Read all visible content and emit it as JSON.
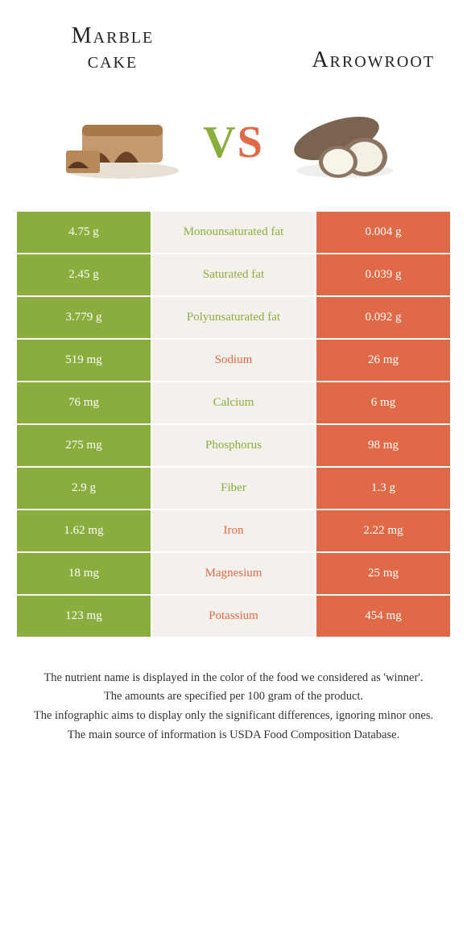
{
  "foods": {
    "left": {
      "title_line1": "Marble",
      "title_line2": "cake"
    },
    "right": {
      "title": "Arrowroot"
    }
  },
  "vs": {
    "v": "V",
    "s": "S"
  },
  "colors": {
    "green": "#8aad3e",
    "orange": "#e06a47",
    "mid_bg": "#f4f1ec"
  },
  "rows": [
    {
      "left": "4.75 g",
      "label": "Monounsaturated fat",
      "right": "0.004 g",
      "winner": "green"
    },
    {
      "left": "2.45 g",
      "label": "Saturated fat",
      "right": "0.039 g",
      "winner": "green"
    },
    {
      "left": "3.779 g",
      "label": "Polyunsaturated fat",
      "right": "0.092 g",
      "winner": "green"
    },
    {
      "left": "519 mg",
      "label": "Sodium",
      "right": "26 mg",
      "winner": "orange"
    },
    {
      "left": "76 mg",
      "label": "Calcium",
      "right": "6 mg",
      "winner": "green"
    },
    {
      "left": "275 mg",
      "label": "Phosphorus",
      "right": "98 mg",
      "winner": "green"
    },
    {
      "left": "2.9 g",
      "label": "Fiber",
      "right": "1.3 g",
      "winner": "green"
    },
    {
      "left": "1.62 mg",
      "label": "Iron",
      "right": "2.22 mg",
      "winner": "orange"
    },
    {
      "left": "18 mg",
      "label": "Magnesium",
      "right": "25 mg",
      "winner": "orange"
    },
    {
      "left": "123 mg",
      "label": "Potassium",
      "right": "454 mg",
      "winner": "orange"
    }
  ],
  "footer": [
    "The nutrient name is displayed in the color of the food we considered as 'winner'.",
    "The amounts are specified per 100 gram of the product.",
    "The infographic aims to display only the significant differences, ignoring minor ones.",
    "The main source of information is USDA Food Composition Database."
  ]
}
